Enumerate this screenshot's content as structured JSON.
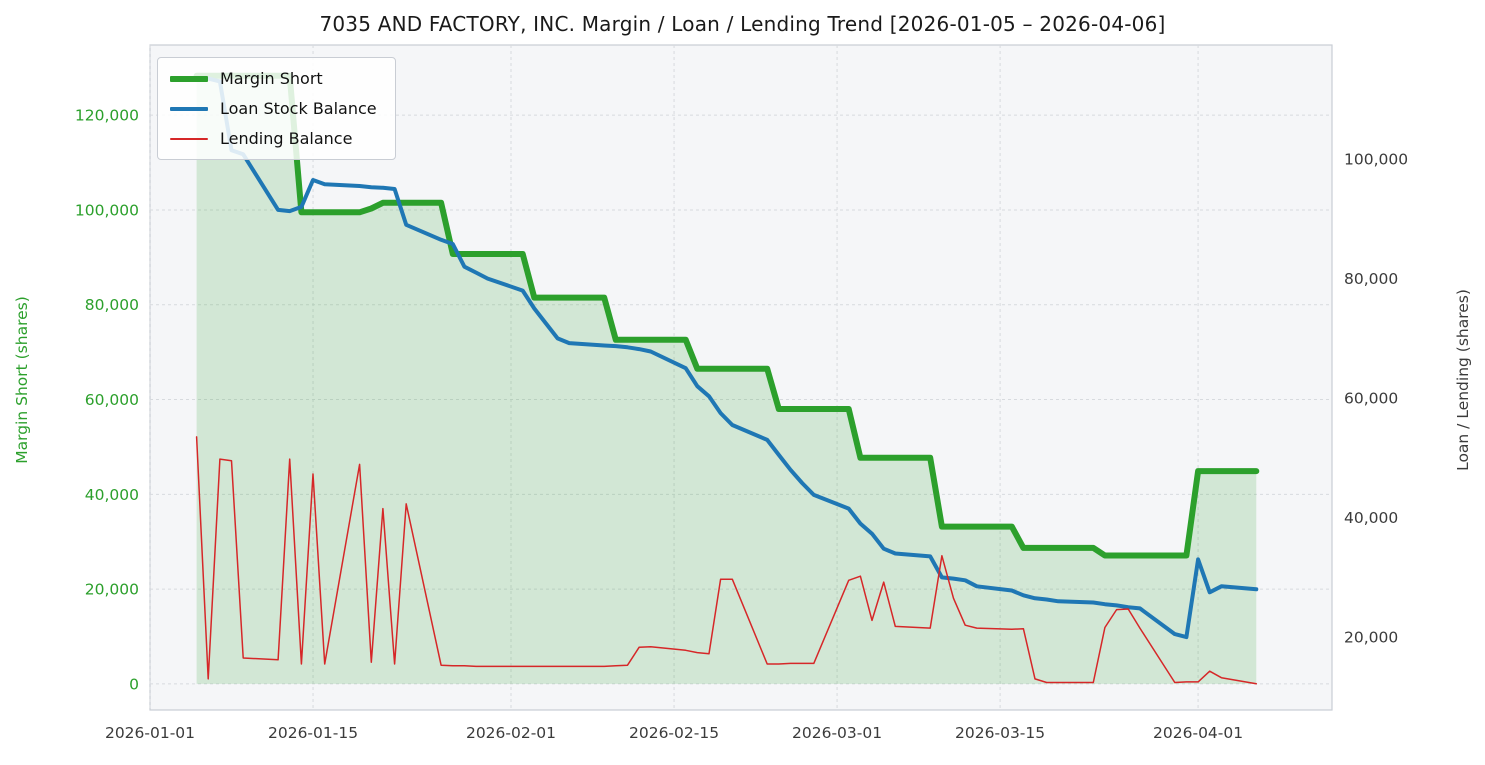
{
  "title": "7035 AND FACTORY, INC. Margin / Loan / Lending Trend [2026-01-05 – 2026-04-06]",
  "style": {
    "plot_bg": "#f5f6f8",
    "grid": "#d7dade",
    "spine": "#c9cdd4",
    "tick_color": "#3b3b3b",
    "left_tick_color": "#2ca02c"
  },
  "legend": [
    {
      "label": "Margin Short",
      "color": "#2ca02c",
      "thickness": 6
    },
    {
      "label": "Loan Stock Balance",
      "color": "#1f77b4",
      "thickness": 4
    },
    {
      "label": "Lending Balance",
      "color": "#d62728",
      "thickness": 2
    }
  ],
  "left_axis": {
    "label": "Margin Short (shares)",
    "ticks": [
      0,
      20000,
      40000,
      60000,
      80000,
      100000,
      120000
    ],
    "tick_labels": [
      "0",
      "20,000",
      "40,000",
      "60,000",
      "80,000",
      "100,000",
      "120,000"
    ]
  },
  "right_axis": {
    "label": "Loan / Lending (shares)",
    "ticks": [
      20000,
      40000,
      60000,
      80000,
      100000
    ],
    "tick_labels": [
      "20,000",
      "40,000",
      "60,000",
      "80,000",
      "100,000"
    ]
  },
  "x_axis": {
    "tick_labels": [
      "2026-01-01",
      "2026-01-15",
      "2026-02-01",
      "2026-02-15",
      "2026-03-01",
      "2026-03-15",
      "2026-04-01"
    ],
    "tick_days": [
      0,
      14,
      31,
      45,
      59,
      73,
      90
    ]
  },
  "chart_data": {
    "type": "line",
    "title": "7035 AND FACTORY, INC. Margin / Loan / Lending Trend [2026-01-05 – 2026-04-06]",
    "ylabel_left": "Margin Short (shares)",
    "ylabel_right": "Loan / Lending (shares)",
    "grid": true,
    "legend_position": "upper left",
    "x_range_days": [
      0,
      101.5
    ],
    "left_ylim": [
      -5500,
      134800
    ],
    "right_ylim": [
      7800,
      119100
    ],
    "x": [
      "2026-01-05",
      "2026-01-06",
      "2026-01-07",
      "2026-01-08",
      "2026-01-09",
      "2026-01-12",
      "2026-01-13",
      "2026-01-14",
      "2026-01-15",
      "2026-01-16",
      "2026-01-19",
      "2026-01-20",
      "2026-01-21",
      "2026-01-22",
      "2026-01-23",
      "2026-01-26",
      "2026-01-27",
      "2026-01-28",
      "2026-01-29",
      "2026-01-30",
      "2026-02-02",
      "2026-02-03",
      "2026-02-04",
      "2026-02-05",
      "2026-02-06",
      "2026-02-09",
      "2026-02-10",
      "2026-02-11",
      "2026-02-12",
      "2026-02-13",
      "2026-02-16",
      "2026-02-17",
      "2026-02-18",
      "2026-02-19",
      "2026-02-20",
      "2026-02-23",
      "2026-02-24",
      "2026-02-25",
      "2026-02-26",
      "2026-02-27",
      "2026-03-02",
      "2026-03-03",
      "2026-03-04",
      "2026-03-05",
      "2026-03-06",
      "2026-03-09",
      "2026-03-10",
      "2026-03-11",
      "2026-03-12",
      "2026-03-13",
      "2026-03-16",
      "2026-03-17",
      "2026-03-18",
      "2026-03-19",
      "2026-03-20",
      "2026-03-23",
      "2026-03-24",
      "2026-03-25",
      "2026-03-26",
      "2026-03-27",
      "2026-03-30",
      "2026-03-31",
      "2026-04-01",
      "2026-04-02",
      "2026-04-03",
      "2026-04-06"
    ],
    "x_days": [
      4,
      5,
      6,
      7,
      8,
      11,
      12,
      13,
      14,
      15,
      18,
      19,
      20,
      21,
      22,
      25,
      26,
      27,
      28,
      29,
      32,
      33,
      34,
      35,
      36,
      39,
      40,
      41,
      42,
      43,
      46,
      47,
      48,
      49,
      50,
      53,
      54,
      55,
      56,
      57,
      60,
      61,
      62,
      63,
      64,
      67,
      68,
      69,
      70,
      71,
      74,
      75,
      76,
      77,
      78,
      81,
      82,
      83,
      84,
      85,
      88,
      89,
      90,
      91,
      92,
      95
    ],
    "series": [
      {
        "id": "margin-short",
        "name": "Margin Short",
        "axis": "left",
        "color": "#2ca02c",
        "width": 6,
        "fill": true,
        "fill_color": "rgba(44,160,44,0.17)",
        "values": [
          128300,
          128300,
          128300,
          128300,
          128300,
          128300,
          128300,
          99500,
          99500,
          99500,
          99500,
          100300,
          101500,
          101500,
          101500,
          101500,
          90700,
          90700,
          90700,
          90700,
          90700,
          81500,
          81500,
          81500,
          81500,
          81500,
          72600,
          72600,
          72600,
          72600,
          72600,
          66500,
          66500,
          66500,
          66500,
          66500,
          58000,
          58000,
          58000,
          58000,
          58000,
          47700,
          47700,
          47700,
          47700,
          47700,
          33200,
          33200,
          33200,
          33200,
          33200,
          28700,
          28700,
          28700,
          28700,
          28700,
          27100,
          27100,
          27100,
          27100,
          27100,
          27100,
          44900,
          44900,
          44900,
          44900
        ]
      },
      {
        "id": "loan-stock-balance",
        "name": "Loan Stock Balance",
        "axis": "right",
        "color": "#1f77b4",
        "width": 4,
        "fill": false,
        "values": [
          113500,
          113500,
          113000,
          101500,
          100800,
          91500,
          91300,
          92000,
          96500,
          95800,
          95500,
          95300,
          95200,
          95000,
          89000,
          86500,
          85800,
          82000,
          81000,
          80000,
          78000,
          75000,
          72500,
          70000,
          69200,
          68800,
          68700,
          68500,
          68200,
          67800,
          65000,
          62000,
          60300,
          57500,
          55500,
          53000,
          50500,
          48000,
          45800,
          43800,
          41500,
          39000,
          37300,
          34800,
          34000,
          33500,
          30000,
          29800,
          29500,
          28500,
          27800,
          27000,
          26500,
          26300,
          26000,
          25800,
          25500,
          25300,
          25000,
          24800,
          20500,
          20000,
          33000,
          27500,
          28500,
          28000
        ]
      },
      {
        "id": "lending-balance",
        "name": "Lending Balance",
        "axis": "right",
        "color": "#d62728",
        "width": 1.5,
        "fill": false,
        "values": [
          53500,
          13000,
          49800,
          49500,
          16500,
          16200,
          49800,
          15500,
          47300,
          15500,
          48900,
          15800,
          41500,
          15500,
          42300,
          15300,
          15200,
          15200,
          15100,
          15100,
          15100,
          15100,
          15100,
          15100,
          15100,
          15100,
          15200,
          15300,
          18300,
          18400,
          17800,
          17400,
          17200,
          29700,
          29700,
          15500,
          15500,
          15600,
          15600,
          15600,
          29500,
          30200,
          22800,
          29200,
          21800,
          21500,
          33600,
          26500,
          22000,
          21500,
          21300,
          21400,
          13000,
          12400,
          12400,
          12400,
          21600,
          24600,
          24700,
          21500,
          12400,
          12500,
          12500,
          14300,
          13200,
          12200
        ]
      }
    ]
  }
}
